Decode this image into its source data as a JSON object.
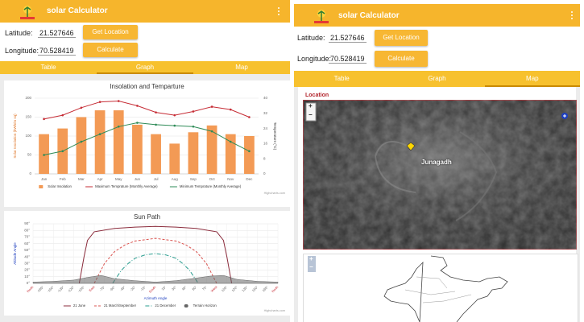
{
  "left": {
    "app_bar": {
      "title": "solar Calculator"
    },
    "latitude": {
      "label": "Latitude:",
      "value": "21.527646"
    },
    "longitude": {
      "label": "Longitude:",
      "value": "70.528419"
    },
    "buttons": [
      "Get Location",
      "Calculate"
    ],
    "tabs": [
      "Table",
      "Graph",
      "Map"
    ],
    "selected_tab": 1,
    "insolation_chart": {
      "type": "bar",
      "title": "Insolation and Temparture",
      "y_label": "Solar Insolation (kWh/m sq)",
      "y2_label": "Temperature (°C)",
      "credit": "Highcharts.com",
      "categories": [
        "Jan",
        "Feb",
        "Mar",
        "Apr",
        "May",
        "Jun",
        "Jul",
        "Aug",
        "Sep",
        "Oct",
        "Nov",
        "Dec"
      ],
      "ylim": [
        0,
        200
      ],
      "yticks": [
        0,
        50,
        100,
        150,
        200
      ],
      "y2lim": [
        0,
        40
      ],
      "y2ticks": [
        0,
        8,
        16,
        24,
        32,
        40
      ],
      "grid": true,
      "series": [
        {
          "name": "Solar Insolation",
          "color": "#f39a55",
          "values": [
            105,
            120,
            150,
            168,
            168,
            130,
            105,
            80,
            110,
            128,
            105,
            100
          ]
        },
        {
          "name": "Maximum Temprature (Monthly Average)",
          "type": "line",
          "axis": "y2",
          "color": "#c62c35",
          "values": [
            29,
            31,
            35,
            38,
            38.5,
            36,
            32.5,
            31,
            33,
            35.5,
            34,
            30
          ]
        },
        {
          "name": "Minimum Temprature (Monthly Average)",
          "type": "line",
          "axis": "y2",
          "color": "#2e8b57",
          "values": [
            10,
            12,
            17,
            21,
            25,
            27,
            26,
            25.5,
            25,
            22.5,
            17,
            12
          ]
        }
      ]
    },
    "sun_path_chart": {
      "type": "line",
      "title": "Sun Path",
      "y_label": "Altitude Angle",
      "x_label": "Azimuth Angle",
      "credit": "Highcharts.com",
      "xlim": [
        -180,
        180
      ],
      "xticks": [
        {
          "value": -180,
          "label": "North"
        },
        {
          "value": -165,
          "label": "-165°"
        },
        {
          "value": -150,
          "label": "-150°"
        },
        {
          "value": -135,
          "label": "-135°"
        },
        {
          "value": -120,
          "label": "-120°"
        },
        {
          "value": -105,
          "label": "-105°"
        },
        {
          "value": -90,
          "label": "East"
        },
        {
          "value": -75,
          "label": "-75°"
        },
        {
          "value": -60,
          "label": "-60°"
        },
        {
          "value": -45,
          "label": "-45°"
        },
        {
          "value": -30,
          "label": "-30°"
        },
        {
          "value": -15,
          "label": "-15°"
        },
        {
          "value": 0,
          "label": "South"
        },
        {
          "value": 15,
          "label": "15°"
        },
        {
          "value": 30,
          "label": "30°"
        },
        {
          "value": 45,
          "label": "45°"
        },
        {
          "value": 60,
          "label": "60°"
        },
        {
          "value": 75,
          "label": "75°"
        },
        {
          "value": 90,
          "label": "West"
        },
        {
          "value": 105,
          "label": "105°"
        },
        {
          "value": 120,
          "label": "120°"
        },
        {
          "value": 135,
          "label": "135°"
        },
        {
          "value": 150,
          "label": "150°"
        },
        {
          "value": 165,
          "label": "165°"
        },
        {
          "value": 180,
          "label": "North"
        }
      ],
      "ylim": [
        0,
        90
      ],
      "yticks": [
        {
          "value": 0,
          "label": "0°"
        },
        {
          "value": 10,
          "label": "10°"
        },
        {
          "value": 20,
          "label": "20°"
        },
        {
          "value": 30,
          "label": "30°"
        },
        {
          "value": 40,
          "label": "40°"
        },
        {
          "value": 50,
          "label": "50°"
        },
        {
          "value": 60,
          "label": "60°"
        },
        {
          "value": 70,
          "label": "70°"
        },
        {
          "value": 80,
          "label": "80°"
        },
        {
          "value": 90,
          "label": "90°"
        }
      ],
      "grid": true,
      "series": [
        {
          "name": "21 June",
          "color": "#8b2c3c",
          "x": [
            -112,
            -105,
            -100,
            -90,
            -60,
            -30,
            0,
            30,
            60,
            90,
            100,
            105,
            112
          ],
          "values": [
            0,
            40,
            65,
            78,
            83,
            85,
            86,
            85,
            83,
            78,
            65,
            40,
            0
          ]
        },
        {
          "name": "21 March/September",
          "color": "#d9534f",
          "dash": "3,2",
          "x": [
            -90,
            -75,
            -60,
            -45,
            -30,
            0,
            30,
            45,
            60,
            75,
            90
          ],
          "values": [
            0,
            30,
            48,
            58,
            64,
            68,
            64,
            58,
            48,
            30,
            0
          ]
        },
        {
          "name": "21 December",
          "color": "#2a9d8f",
          "dash": "5,2,1,2",
          "x": [
            -63,
            -50,
            -40,
            -30,
            -15,
            0,
            15,
            30,
            40,
            50,
            63
          ],
          "values": [
            0,
            20,
            30,
            38,
            43,
            45,
            43,
            38,
            30,
            20,
            0
          ]
        },
        {
          "name": "Terrain Horizon",
          "type": "area",
          "color": "#666666",
          "x": [
            -180,
            -150,
            -120,
            -100,
            -80,
            -60,
            -30,
            0,
            30,
            60,
            80,
            100,
            120,
            150,
            180
          ],
          "values": [
            2,
            3,
            5,
            9,
            12,
            7,
            4,
            2,
            4,
            8,
            11,
            12,
            6,
            3,
            2
          ]
        }
      ]
    }
  },
  "right": {
    "app_bar": {
      "title": "solar Calculator"
    },
    "latitude": {
      "label": "Latitude:",
      "value": "21.527646"
    },
    "longitude": {
      "label": "Longitude:",
      "value": "70.528419"
    },
    "buttons": [
      "Get Location",
      "Calculate"
    ],
    "tabs": [
      "Table",
      "Graph",
      "Map"
    ],
    "selected_tab": 2,
    "map": {
      "title": "Location",
      "place": "Junagadh",
      "zoom_in": "+",
      "zoom_out": "−"
    },
    "map2": {
      "zoom_in": "+",
      "zoom_out": "−"
    }
  }
}
